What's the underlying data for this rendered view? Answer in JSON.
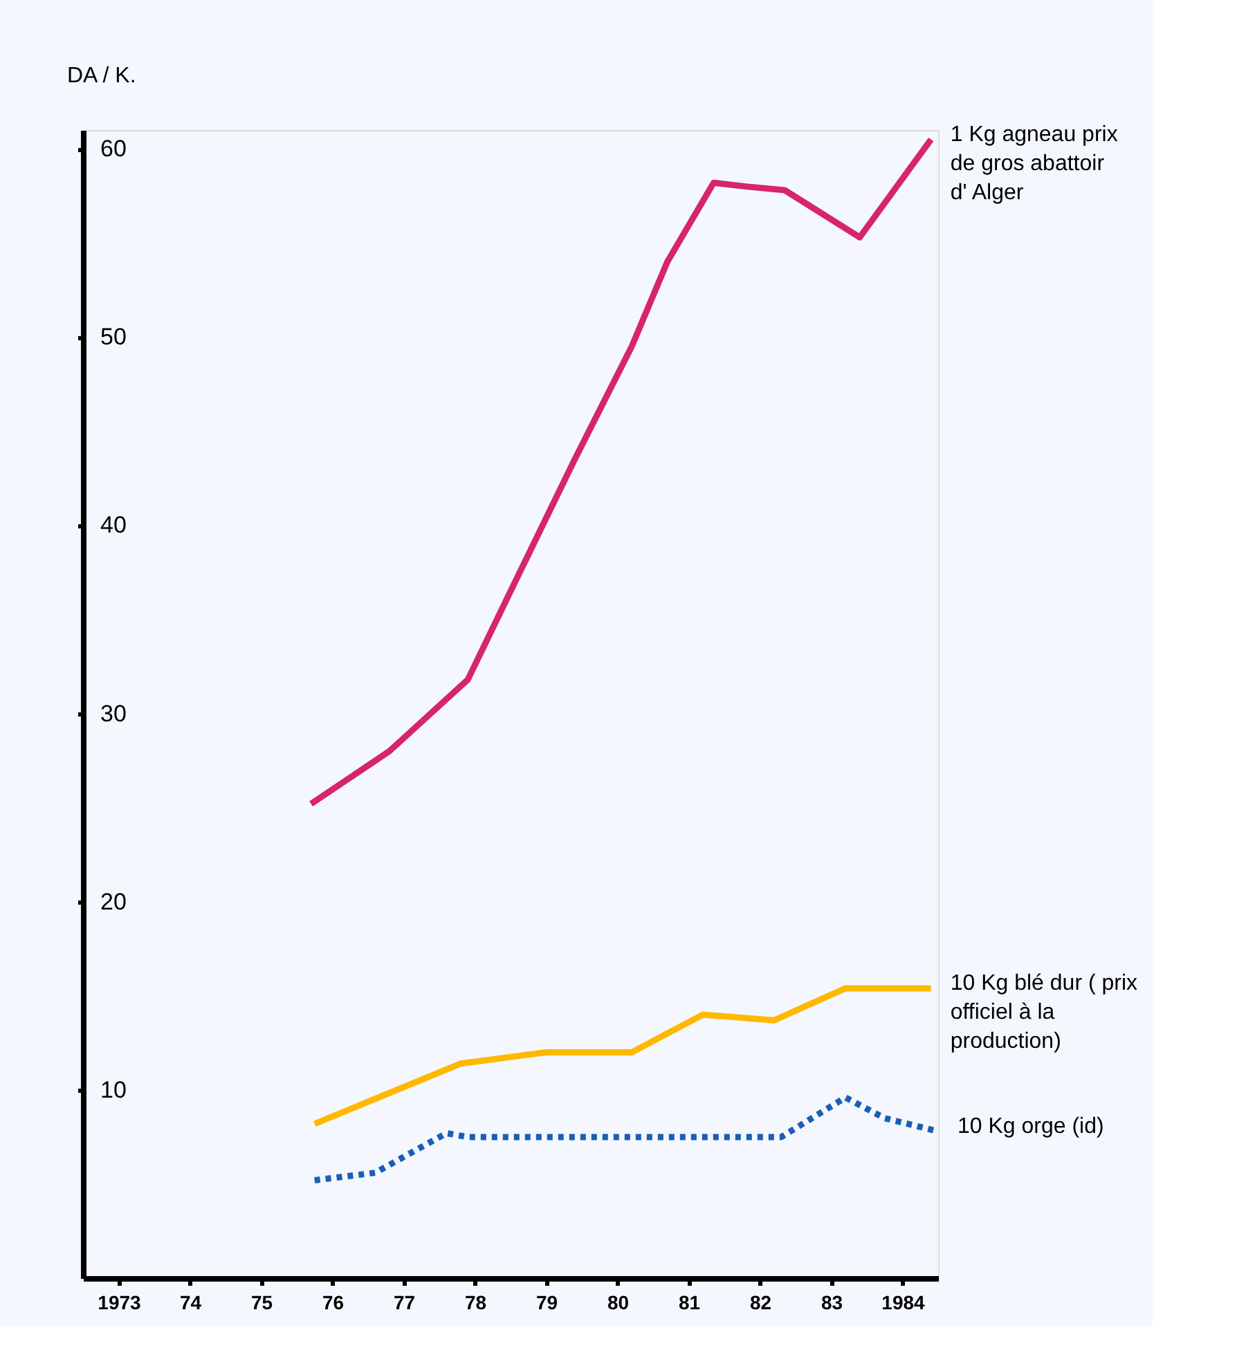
{
  "chart_data": {
    "type": "line",
    "ylabel": "DA / K.",
    "xlim": [
      1972.5,
      1984.5
    ],
    "ylim": [
      0,
      61
    ],
    "xticks": [
      1973,
      {
        "value": 1974,
        "label": "74"
      },
      {
        "value": 1975,
        "label": "75"
      },
      {
        "value": 1976,
        "label": "76"
      },
      {
        "value": 1977,
        "label": "77"
      },
      {
        "value": 1978,
        "label": "78"
      },
      {
        "value": 1979,
        "label": "79"
      },
      {
        "value": 1980,
        "label": "80"
      },
      {
        "value": 1981,
        "label": "81"
      },
      {
        "value": 1982,
        "label": "82"
      },
      {
        "value": 1983,
        "label": "83"
      },
      1984
    ],
    "yticks": [
      10,
      20,
      30,
      40,
      50,
      60
    ],
    "grid": false,
    "legend": false,
    "marker": "none",
    "series": [
      {
        "name": "1 Kg agneau  prix\nde gros abattoir\nd' Alger",
        "color": "#d6246e",
        "line_style": "solid",
        "x": [
          1975.7,
          1976.8,
          1977.9,
          1978.5,
          1979.4,
          1980.2,
          1980.7,
          1981.35,
          1981.8,
          1982.35,
          1983.4,
          1984.4
        ],
        "values": [
          25.2,
          28.0,
          31.8,
          36.5,
          43.5,
          49.5,
          54.0,
          58.2,
          58.0,
          57.8,
          55.3,
          60.5
        ]
      },
      {
        "name": "10 Kg blé dur ( prix\nofficiel à  la\nproduction)",
        "color": "#ffb800",
        "line_style": "solid",
        "x": [
          1975.75,
          1977.8,
          1979.0,
          1980.2,
          1981.2,
          1982.2,
          1983.2,
          1984.4
        ],
        "values": [
          8.2,
          11.4,
          12.0,
          12.0,
          14.0,
          13.7,
          15.4,
          15.4
        ]
      },
      {
        "name": "10 Kg orge (id)",
        "color": "#1a5fb4",
        "line_style": "dotted",
        "x": [
          1975.75,
          1976.6,
          1977.6,
          1977.9,
          1982.3,
          1983.2,
          1983.75,
          1984.5
        ],
        "values": [
          5.2,
          5.6,
          7.7,
          7.5,
          7.5,
          9.6,
          8.5,
          7.8
        ]
      }
    ]
  }
}
